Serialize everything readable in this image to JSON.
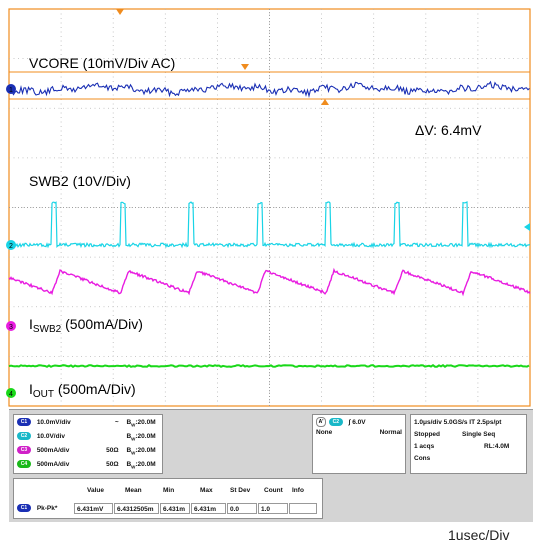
{
  "waveform_labels": {
    "vcore": "VCORE (10mV/Div   AC)",
    "delta_v": "ΔV: 6.4mV",
    "swb2": "SWB2 (10V/Div)",
    "iswb2_prefix": "I",
    "iswb2_sub": "SWB2",
    "iswb2_suffix": " (500mA/Div)",
    "iout_prefix": "I",
    "iout_sub": "OUT",
    "iout_suffix": " (500mA/Div)"
  },
  "channel_markers": {
    "c1": "1",
    "c2": "2",
    "c3": "3",
    "c4": "4"
  },
  "colors": {
    "grid_border": "#f08c1e",
    "ch1": "#1a2fb4",
    "ch2": "#19d4e6",
    "ch3": "#e81ce0",
    "ch4": "#19d819",
    "cursor": "#f08c1e"
  },
  "channels": [
    {
      "badge": "C1",
      "scale": "10.0mV/div",
      "impedance": "",
      "coupling_icon": "~",
      "bw": "B",
      "bw_sub": "W",
      "bw_val": ":20.0M",
      "color": "#1a2fb4"
    },
    {
      "badge": "C2",
      "scale": "10.0V/div",
      "impedance": "",
      "coupling_icon": "",
      "bw": "B",
      "bw_sub": "W",
      "bw_val": ":20.0M",
      "color": "#19b8c8"
    },
    {
      "badge": "C3",
      "scale": "500mA/div",
      "impedance": "50Ω",
      "coupling_icon": "",
      "bw": "B",
      "bw_sub": "W",
      "bw_val": ":20.0M",
      "color": "#d020c8"
    },
    {
      "badge": "C4",
      "scale": "500mA/div",
      "impedance": "50Ω",
      "coupling_icon": "",
      "bw": "B",
      "bw_sub": "W",
      "bw_val": ":20.0M",
      "color": "#19b819"
    }
  ],
  "trigger": {
    "source": "A'",
    "channel": "C2",
    "slope": "∫",
    "level": "6.0V",
    "mode1": "None",
    "mode2": "Normal"
  },
  "timebase": {
    "line1": "1.0μs/div   5.0GS/s   IT   2.5ps/pt",
    "status": "Stopped",
    "seq": "Single Seq",
    "acqs": "1 acqs",
    "rl": "RL:4.0M",
    "cons": "Cons"
  },
  "measurements": {
    "headers": [
      "Value",
      "Mean",
      "Min",
      "Max",
      "St Dev",
      "Count",
      "Info"
    ],
    "row": {
      "badge": "C1",
      "name": "Pk-Pk*",
      "values": [
        "6.431mV",
        "6.4312505m",
        "6.431m",
        "6.431m",
        "0.0",
        "1.0",
        ""
      ]
    }
  },
  "footer": {
    "time_per_div": "1usec/Div"
  }
}
